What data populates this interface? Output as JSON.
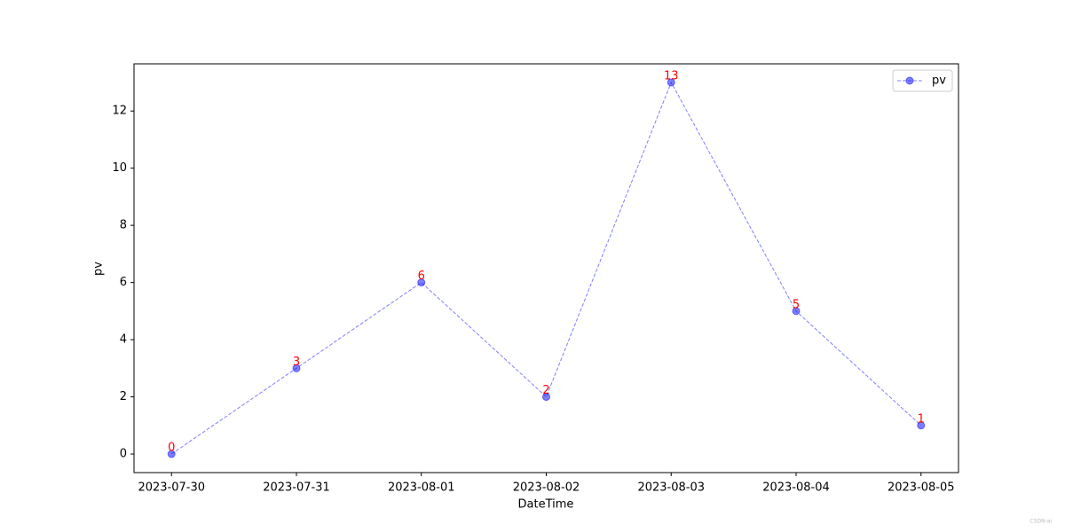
{
  "chart_data": {
    "type": "line",
    "x_label": "DateTime",
    "y_label": "pv",
    "categories": [
      "2023-07-30",
      "2023-07-31",
      "2023-08-01",
      "2023-08-02",
      "2023-08-03",
      "2023-08-04",
      "2023-08-05"
    ],
    "series": [
      {
        "name": "pv",
        "color": "#0000ff",
        "values": [
          0,
          3,
          6,
          2,
          13,
          5,
          1
        ]
      }
    ],
    "value_label_color": "#ff0000",
    "ylim": [
      -0.65,
      13.65
    ],
    "yticks": [
      0,
      2,
      4,
      6,
      8,
      10,
      12
    ],
    "grid": false,
    "legend": "upper right",
    "watermark": "CSDN-ai"
  }
}
